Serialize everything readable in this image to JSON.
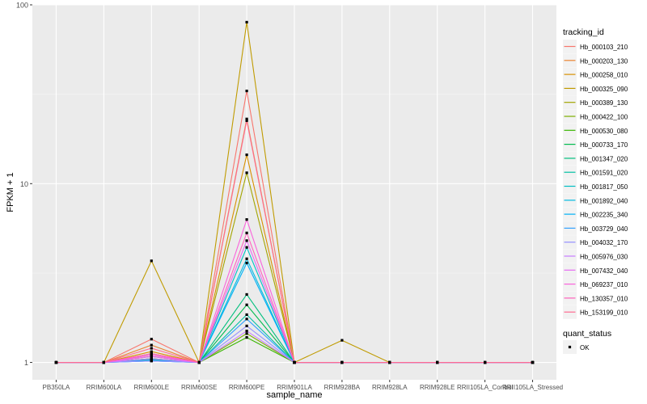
{
  "chart_data": {
    "type": "line",
    "title": "",
    "xlabel": "sample_name",
    "ylabel": "FPKM + 1",
    "y_scale": "log10",
    "ylim": [
      0.8,
      100
    ],
    "y_ticks": [
      1,
      10,
      100
    ],
    "y_tick_labels": [
      "1",
      "10",
      "100"
    ],
    "grid": true,
    "categories": [
      "PB350LA",
      "RRIM600LA",
      "RRIM600LE",
      "RRIM600SE",
      "RRIM600PE",
      "RRIM901LA",
      "RRIM928BA",
      "RRIM928LA",
      "RRIM928LE",
      "RRII105LA_Control",
      "RRII105LA_Stressed"
    ],
    "legend": {
      "position": "right",
      "title": "tracking_id",
      "quant_title": "quant_status",
      "quant_label": "OK"
    },
    "series": [
      {
        "name": "Hb_000103_210",
        "color": "#F8766D",
        "values": [
          1,
          1,
          1.35,
          1,
          33.0,
          1,
          1,
          1,
          1,
          1,
          1
        ]
      },
      {
        "name": "Hb_000203_130",
        "color": "#EA8331",
        "values": [
          1,
          1,
          1.25,
          1,
          23.0,
          1,
          1,
          1,
          1,
          1,
          1
        ]
      },
      {
        "name": "Hb_000258_010",
        "color": "#D89000",
        "values": [
          1,
          1,
          1.15,
          1,
          14.5,
          1,
          1,
          1,
          1,
          1,
          1
        ]
      },
      {
        "name": "Hb_000325_090",
        "color": "#C09B00",
        "values": [
          1,
          1,
          3.7,
          1,
          80.0,
          1.0,
          1.33,
          1,
          1,
          1,
          1
        ]
      },
      {
        "name": "Hb_000389_130",
        "color": "#A3A500",
        "values": [
          1,
          1,
          1.12,
          1,
          11.5,
          1,
          1,
          1,
          1,
          1,
          1
        ]
      },
      {
        "name": "Hb_000422_100",
        "color": "#7CAE00",
        "values": [
          1,
          1,
          1.08,
          1,
          1.45,
          1,
          1,
          1,
          1,
          1,
          1
        ]
      },
      {
        "name": "Hb_000530_080",
        "color": "#39B600",
        "values": [
          1,
          1,
          1.05,
          1,
          1.38,
          1,
          1,
          1,
          1,
          1,
          1
        ]
      },
      {
        "name": "Hb_000733_170",
        "color": "#00BB4E",
        "values": [
          1,
          1,
          1.05,
          1,
          2.1,
          1,
          1,
          1,
          1,
          1,
          1
        ]
      },
      {
        "name": "Hb_001347_020",
        "color": "#00BF7D",
        "values": [
          1,
          1,
          1.04,
          1,
          2.4,
          1,
          1,
          1,
          1,
          1,
          1
        ]
      },
      {
        "name": "Hb_001591_020",
        "color": "#00C1A3",
        "values": [
          1,
          1,
          1.03,
          1,
          1.85,
          1,
          1,
          1,
          1,
          1,
          1
        ]
      },
      {
        "name": "Hb_001817_050",
        "color": "#00BFC4",
        "values": [
          1,
          1,
          1.03,
          1,
          4.4,
          1,
          1,
          1,
          1,
          1,
          1
        ]
      },
      {
        "name": "Hb_001892_040",
        "color": "#00BAE0",
        "values": [
          1,
          1,
          1.03,
          1,
          3.8,
          1,
          1,
          1,
          1,
          1,
          1
        ]
      },
      {
        "name": "Hb_002235_340",
        "color": "#00B0F6",
        "values": [
          1,
          1,
          1.02,
          1,
          3.6,
          1,
          1,
          1,
          1,
          1,
          1
        ]
      },
      {
        "name": "Hb_003729_040",
        "color": "#35A2FF",
        "values": [
          1,
          1,
          1.02,
          1,
          1.75,
          1,
          1,
          1,
          1,
          1,
          1
        ]
      },
      {
        "name": "Hb_004032_170",
        "color": "#9590FF",
        "values": [
          1,
          1,
          1.02,
          1,
          1.6,
          1,
          1,
          1,
          1,
          1,
          1
        ]
      },
      {
        "name": "Hb_005976_030",
        "color": "#C77CFF",
        "values": [
          1,
          1,
          1.05,
          1,
          1.5,
          1,
          1,
          1,
          1,
          1,
          1
        ]
      },
      {
        "name": "Hb_007432_040",
        "color": "#E76BF3",
        "values": [
          1,
          1,
          1.08,
          1,
          4.8,
          1,
          1,
          1,
          1,
          1,
          1
        ]
      },
      {
        "name": "Hb_069237_010",
        "color": "#FA62DB",
        "values": [
          1,
          1,
          1.1,
          1,
          6.3,
          1,
          1,
          1,
          1,
          1,
          1
        ]
      },
      {
        "name": "Hb_130357_010",
        "color": "#FF62BC",
        "values": [
          1,
          1,
          1.12,
          1,
          5.3,
          1,
          1,
          1,
          1,
          1,
          1
        ]
      },
      {
        "name": "Hb_153199_010",
        "color": "#FF6C91",
        "values": [
          1,
          1,
          1.2,
          1,
          22.5,
          1,
          1,
          1,
          1,
          1,
          1
        ]
      }
    ]
  }
}
